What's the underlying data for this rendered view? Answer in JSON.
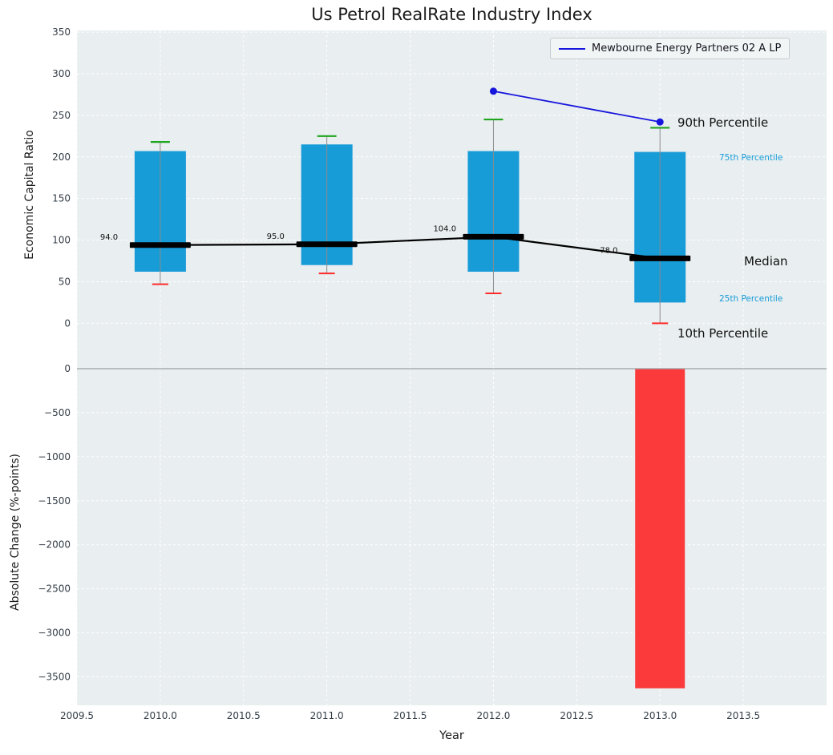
{
  "title": "Us Petrol RealRate Industry Index",
  "legend": {
    "label": "Mewbourne Energy Partners 02 A LP"
  },
  "annotations": {
    "p90": "90th Percentile",
    "p75": "75th Percentile",
    "median": "Median",
    "p25": "25th Percentile",
    "p10": "10th Percentile"
  },
  "colors": {
    "bar": "#189cd8",
    "company": "#1616dd",
    "median": "#000000",
    "cap_high": "#1fa51f",
    "cap_low": "#ff2b2b",
    "whisker": "#8a8a8a",
    "neg_bar": "#fb3b3b",
    "plot_bg": "#e9eef0",
    "grid": "#ffffff",
    "tick_text": "#333d47",
    "zero_line": "#9aa0a4",
    "percentile_text": "#189cd8"
  },
  "chart_data": [
    {
      "type": "boxplot-bars+median-line",
      "title": "Us Petrol RealRate Industry Index",
      "ylabel": "Economic Capital Ratio",
      "x": [
        2010,
        2011,
        2012,
        2013
      ],
      "series": [
        {
          "name": "90th Percentile",
          "values": [
            218,
            225,
            245,
            235
          ]
        },
        {
          "name": "75th Percentile",
          "values": [
            207,
            215,
            207,
            206
          ]
        },
        {
          "name": "Median",
          "values": [
            94,
            95,
            104,
            78
          ]
        },
        {
          "name": "25th Percentile",
          "values": [
            62,
            70,
            62,
            25
          ]
        },
        {
          "name": "10th Percentile",
          "values": [
            47,
            60,
            36,
            0
          ]
        }
      ],
      "median_labels": [
        "94.0",
        "95.0",
        "104.0",
        "78.0"
      ],
      "company_line": {
        "name": "Mewbourne Energy Partners 02 A LP",
        "x": [
          2012,
          2013
        ],
        "y": [
          279,
          242
        ]
      },
      "ylim": [
        -43,
        352
      ],
      "ytick_values": [
        0,
        50,
        100,
        150,
        200,
        250,
        300,
        350
      ],
      "ytick_labels": [
        "0",
        "50",
        "100",
        "150",
        "200",
        "250",
        "300",
        "350"
      ],
      "grid": true,
      "legend_position": "upper right"
    },
    {
      "type": "bar",
      "ylabel": "Absolute Change (%-points)",
      "xlabel": "Year",
      "x": [
        2013
      ],
      "values": [
        -3630
      ],
      "ylim": [
        -3823,
        109
      ],
      "ytick_values": [
        0,
        -500,
        -1000,
        -1500,
        -2000,
        -2500,
        -3000,
        -3500
      ],
      "ytick_labels": [
        "0",
        "−500",
        "−1000",
        "−1500",
        "−2000",
        "−2500",
        "−3000",
        "−3500"
      ],
      "xlim": [
        2009.5,
        2014
      ],
      "xtick_values": [
        2009.5,
        2010,
        2010.5,
        2011,
        2011.5,
        2012,
        2012.5,
        2013,
        2013.5
      ],
      "xtick_labels": [
        "2009.5",
        "2010.0",
        "2010.5",
        "2011.0",
        "2011.5",
        "2012.0",
        "2012.5",
        "2013.0",
        "2013.5"
      ],
      "grid": true
    }
  ]
}
